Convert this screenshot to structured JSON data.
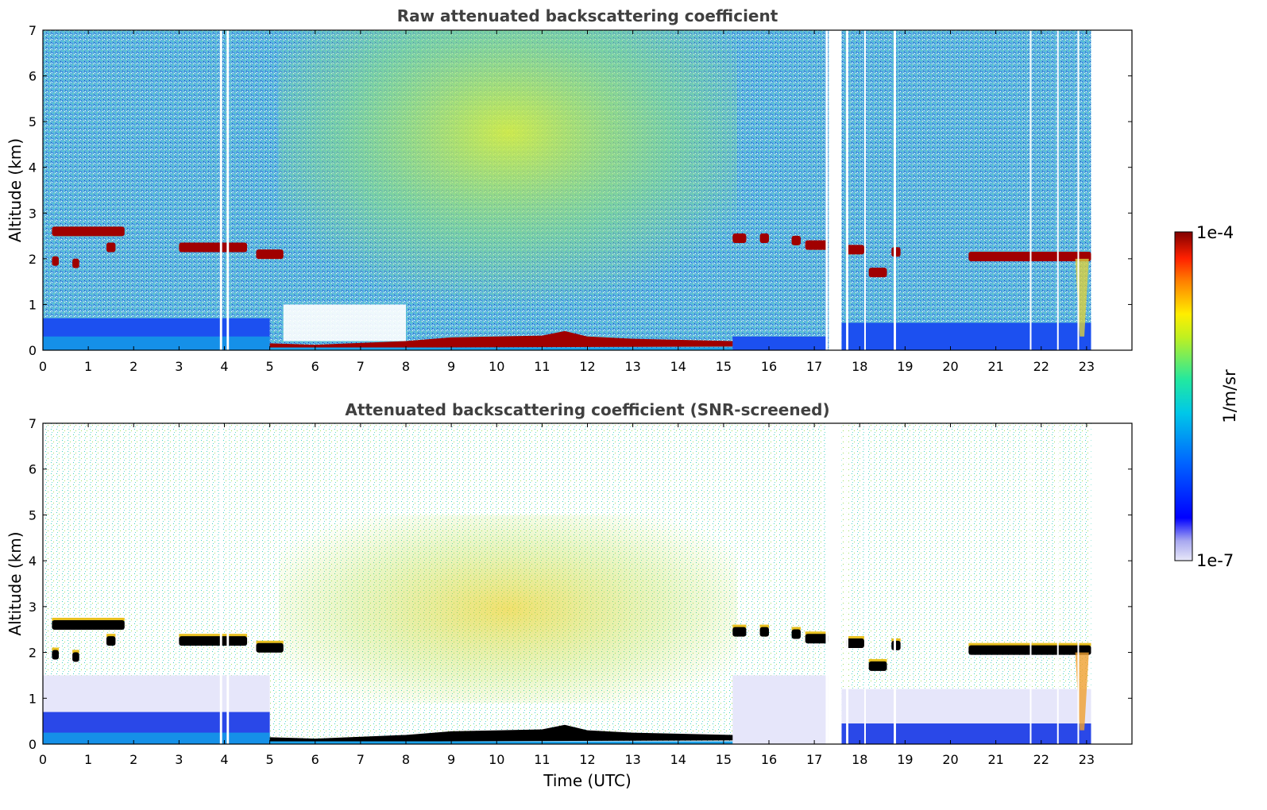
{
  "chart_data": [
    {
      "type": "heatmap",
      "title": "Raw attenuated backscattering coefficient",
      "xlabel": "",
      "ylabel": "Altitude (km)",
      "xlim": [
        0,
        24
      ],
      "ylim": [
        0,
        7
      ],
      "xticks": [
        "0",
        "1",
        "2",
        "3",
        "4",
        "5",
        "6",
        "7",
        "8",
        "9",
        "10",
        "11",
        "12",
        "13",
        "14",
        "15",
        "16",
        "17",
        "18",
        "19",
        "20",
        "21",
        "22",
        "23"
      ],
      "yticks": [
        "0",
        "1",
        "2",
        "3",
        "4",
        "5",
        "6",
        "7"
      ],
      "data_end_time": 23.1,
      "missing_data_gaps": [
        [
          3.9,
          3.95
        ],
        [
          4.05,
          4.1
        ],
        [
          17.25,
          17.3
        ],
        [
          17.32,
          17.6
        ],
        [
          17.7,
          17.75
        ],
        [
          18.1,
          18.13
        ],
        [
          18.75,
          18.8
        ],
        [
          21.75,
          21.78
        ],
        [
          22.35,
          22.38
        ],
        [
          22.8,
          22.83
        ]
      ],
      "cloud_layers": [
        {
          "t_start": 0.2,
          "t_end": 1.8,
          "altitude_km": 2.6
        },
        {
          "t_start": 1.4,
          "t_end": 1.6,
          "altitude_km": 2.25
        },
        {
          "t_start": 0.2,
          "t_end": 0.35,
          "altitude_km": 1.95
        },
        {
          "t_start": 0.65,
          "t_end": 0.8,
          "altitude_km": 1.9
        },
        {
          "t_start": 3.0,
          "t_end": 4.5,
          "altitude_km": 2.25
        },
        {
          "t_start": 4.7,
          "t_end": 5.3,
          "altitude_km": 2.1
        },
        {
          "t_start": 15.2,
          "t_end": 15.5,
          "altitude_km": 2.45
        },
        {
          "t_start": 15.8,
          "t_end": 16.0,
          "altitude_km": 2.45
        },
        {
          "t_start": 16.5,
          "t_end": 16.7,
          "altitude_km": 2.4
        },
        {
          "t_start": 16.8,
          "t_end": 17.3,
          "altitude_km": 2.3
        },
        {
          "t_start": 17.7,
          "t_end": 18.1,
          "altitude_km": 2.2
        },
        {
          "t_start": 18.2,
          "t_end": 18.6,
          "altitude_km": 1.7
        },
        {
          "t_start": 18.7,
          "t_end": 18.9,
          "altitude_km": 2.15
        },
        {
          "t_start": 20.4,
          "t_end": 23.1,
          "altitude_km": 2.05
        }
      ],
      "fog_layer": {
        "t_start": 5.0,
        "t_end": 15.2,
        "top_km": [
          [
            5.0,
            0.15
          ],
          [
            6.0,
            0.12
          ],
          [
            8.0,
            0.2
          ],
          [
            9.0,
            0.28
          ],
          [
            11.0,
            0.32
          ],
          [
            11.5,
            0.42
          ],
          [
            12.0,
            0.3
          ],
          [
            13.0,
            0.25
          ],
          [
            15.2,
            0.2
          ]
        ]
      }
    },
    {
      "type": "heatmap",
      "title": "Attenuated backscattering coefficient (SNR-screened)",
      "xlabel": "Time (UTC)",
      "ylabel": "Altitude (km)",
      "xlim": [
        0,
        24
      ],
      "ylim": [
        0,
        7
      ],
      "xticks": [
        "0",
        "1",
        "2",
        "3",
        "4",
        "5",
        "6",
        "7",
        "8",
        "9",
        "10",
        "11",
        "12",
        "13",
        "14",
        "15",
        "16",
        "17",
        "18",
        "19",
        "20",
        "21",
        "22",
        "23"
      ],
      "yticks": [
        "0",
        "1",
        "2",
        "3",
        "4",
        "5",
        "6",
        "7"
      ],
      "data_end_time": 23.1
    }
  ],
  "colorbar": {
    "max_label": "1e-4",
    "min_label": "1e-7",
    "unit_label": "1/m/sr",
    "colormap": "jet",
    "scale": "log"
  },
  "colors": {
    "low": "#0000ff",
    "mid": "#00cccc",
    "high": "#ffee00",
    "cloud": "#a00000",
    "screened_cloud": "#000000",
    "pale_low": "#e6e6fa"
  }
}
